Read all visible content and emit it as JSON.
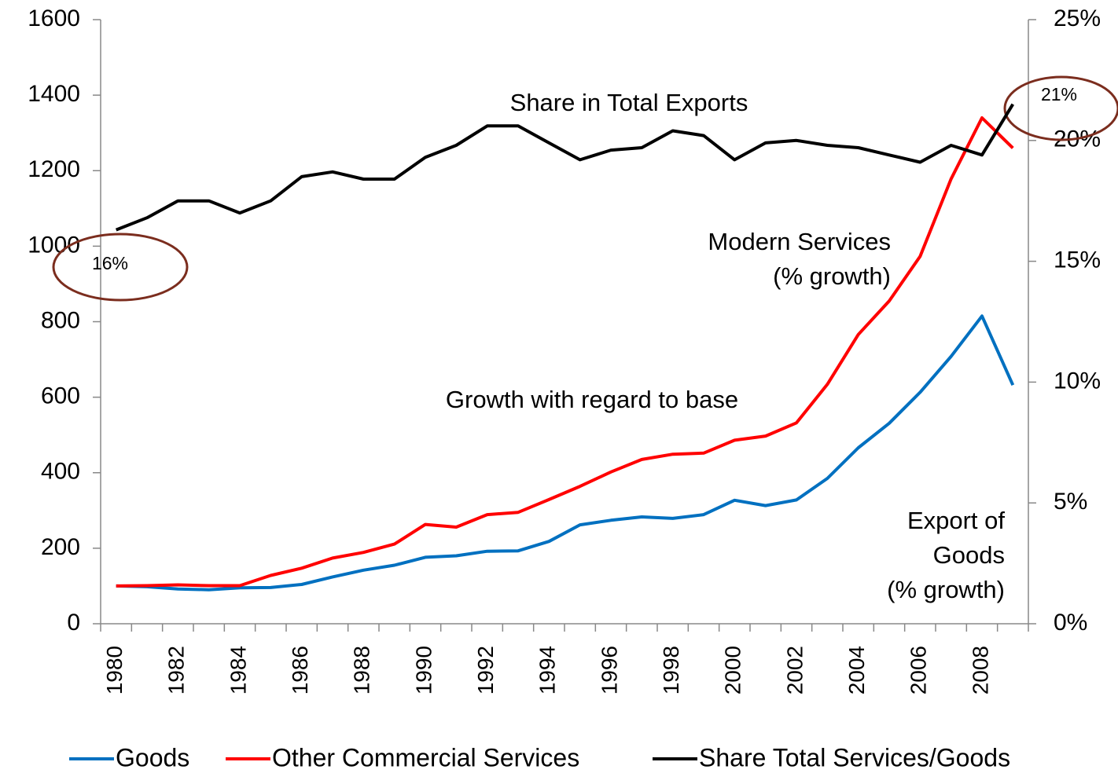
{
  "chart_data": {
    "type": "line",
    "categories": [
      "1980",
      null,
      "1982",
      null,
      "1984",
      null,
      "1986",
      null,
      "1988",
      null,
      "1990",
      null,
      "1992",
      null,
      "1994",
      null,
      "1996",
      null,
      "1998",
      null,
      "2000",
      null,
      "2002",
      null,
      "2004",
      null,
      "2006",
      null,
      "2008",
      null
    ],
    "series": [
      {
        "name": "Goods",
        "color": "#0070c0",
        "values": [
          100,
          98,
          92,
          90,
          95,
          96,
          104,
          124,
          142,
          155,
          176,
          180,
          192,
          193,
          218,
          262,
          274,
          283,
          279,
          289,
          327,
          313,
          328,
          385,
          466,
          531,
          613,
          708,
          815,
          632
        ]
      },
      {
        "name": "Other Commercial Services",
        "color": "#ff0000",
        "values": [
          100,
          101,
          103,
          101,
          101,
          128,
          147,
          174,
          189,
          211,
          263,
          256,
          289,
          295,
          329,
          364,
          402,
          435,
          449,
          452,
          486,
          497,
          532,
          634,
          766,
          855,
          973,
          1178,
          1340,
          1260
        ]
      },
      {
        "name": "Share Total Services/Goods",
        "color": "#000000",
        "axis": "y2",
        "values": [
          16.3,
          16.8,
          17.5,
          17.5,
          17.0,
          17.5,
          18.5,
          18.7,
          18.4,
          18.4,
          19.3,
          19.8,
          20.6,
          20.6,
          19.9,
          19.2,
          19.6,
          19.7,
          20.4,
          20.2,
          19.2,
          19.9,
          20.0,
          19.8,
          19.7,
          19.4,
          19.1,
          19.8,
          19.4,
          21.5
        ]
      }
    ],
    "ylim": [
      0,
      1600
    ],
    "yticks": [
      0,
      200,
      400,
      600,
      800,
      1000,
      1200,
      1400,
      1600
    ],
    "y2lim": [
      0,
      25
    ],
    "y2ticks": [
      {
        "value": 0,
        "label": "0%"
      },
      {
        "value": 5,
        "label": "5%"
      },
      {
        "value": 10,
        "label": "10%"
      },
      {
        "value": 15,
        "label": "15%"
      },
      {
        "value": 20,
        "label": "20%"
      },
      {
        "value": 25,
        "label": "25%"
      }
    ],
    "annotations": {
      "share": [
        "Share in Total Exports"
      ],
      "modern": [
        "Modern Services",
        "(% growth)"
      ],
      "growth": [
        "Growth with regard to base"
      ],
      "goods": [
        "Export of",
        "Goods",
        "(% growth)"
      ],
      "start": [
        "16%"
      ],
      "end": [
        "21%"
      ]
    },
    "legend": "bottom",
    "grid": false
  }
}
